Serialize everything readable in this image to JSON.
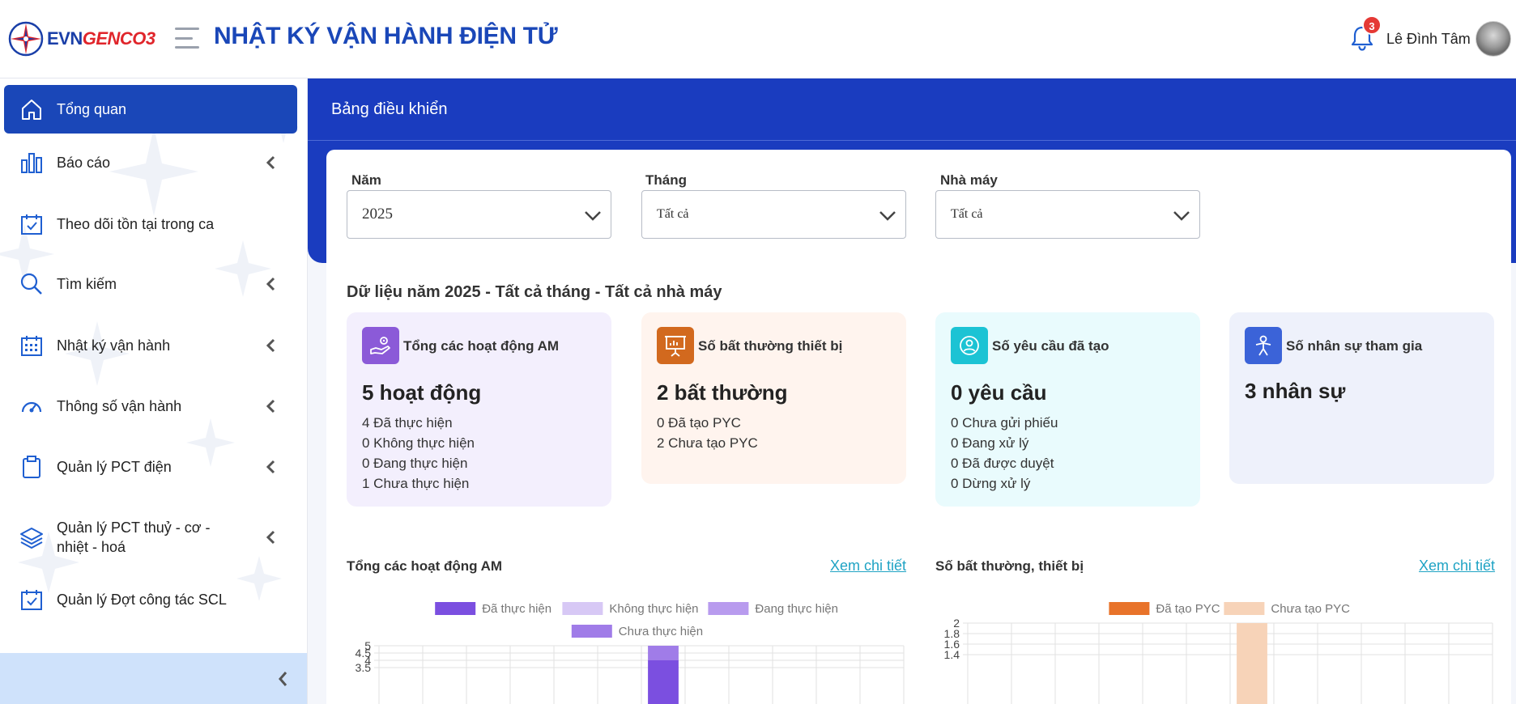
{
  "header": {
    "logo_evn": "EVN",
    "logo_genco": "GENCO3",
    "app_title": "NHẬT KÝ VẬN HÀNH ĐIỆN TỬ",
    "notification_count": "3",
    "user_name": "Lê Đình Tâm"
  },
  "sidebar": {
    "items": [
      {
        "label": "Tổng quan",
        "icon": "home-icon",
        "active": true
      },
      {
        "label": "Báo cáo",
        "icon": "bar-chart-icon",
        "has_children": true
      },
      {
        "label": "Theo dõi tồn tại trong ca",
        "icon": "calendar-check-icon"
      },
      {
        "label": "Tìm kiếm",
        "icon": "search-icon",
        "has_children": true
      },
      {
        "label": "Nhật ký vận hành",
        "icon": "calendar-grid-icon",
        "has_children": true
      },
      {
        "label": "Thông số vận hành",
        "icon": "gauge-icon",
        "has_children": true
      },
      {
        "label": "Quản lý PCT điện",
        "icon": "clipboard-icon",
        "has_children": true
      },
      {
        "label": "Quản lý PCT thuỷ - cơ - nhiệt - hoá",
        "icon": "layers-icon",
        "has_children": true
      },
      {
        "label": "Quản lý Đợt công tác SCL",
        "icon": "calendar-check-icon"
      }
    ]
  },
  "main": {
    "page_title": "Bảng điều khiển",
    "filters": {
      "year_label": "Năm",
      "year_value": "2025",
      "month_label": "Tháng",
      "month_value": "Tất cả",
      "plant_label": "Nhà máy",
      "plant_value": "Tất cả"
    },
    "data_heading": "Dữ liệu năm 2025 - Tất cả tháng - Tất cả nhà máy",
    "cards": [
      {
        "title": "Tổng các hoạt động AM",
        "value": "5 hoạt động",
        "lines": [
          "4 Đã thực hiện",
          "0 Không thực hiện",
          "0 Đang thực hiện",
          "1 Chưa thực hiện"
        ],
        "bg": "#f3effd",
        "icon_bg": "#8b5ad8",
        "icon": "hand-gear-icon"
      },
      {
        "title": "Số bất thường thiết bị",
        "value": "2 bất thường",
        "lines": [
          "0 Đã tạo PYC",
          "2 Chưa tạo PYC"
        ],
        "bg": "#fff4ee",
        "icon_bg": "#d2691e",
        "icon": "presentation-icon"
      },
      {
        "title": "Số yêu cầu đã tạo",
        "value": "0 yêu cầu",
        "lines": [
          "0 Chưa gửi phiếu",
          "0 Đang xử lý",
          "0 Đã được duyệt",
          "0 Dừng xử lý"
        ],
        "bg": "#e9fbfd",
        "icon_bg": "#1cc3d4",
        "icon": "user-circle-icon"
      },
      {
        "title": "Số nhân sự tham gia",
        "value": "3 nhân sự",
        "lines": [],
        "bg": "#eef1fb",
        "icon_bg": "#3b63d8",
        "icon": "person-icon"
      }
    ],
    "link_label": "Xem chi tiết"
  },
  "chart_data": [
    {
      "type": "bar",
      "title": "Tổng các hoạt động AM",
      "stacked": true,
      "legend_position": "top",
      "series": [
        {
          "name": "Đã thực hiện",
          "color": "#7b4fe0",
          "values": [
            0,
            0,
            0,
            0,
            0,
            0,
            4,
            0,
            0,
            0,
            0,
            0
          ]
        },
        {
          "name": "Không thực hiện",
          "color": "#d7c8f5",
          "values": [
            0,
            0,
            0,
            0,
            0,
            0,
            0,
            0,
            0,
            0,
            0,
            0
          ]
        },
        {
          "name": "Đang thực hiện",
          "color": "#b89bee",
          "values": [
            0,
            0,
            0,
            0,
            0,
            0,
            0,
            0,
            0,
            0,
            0,
            0
          ]
        },
        {
          "name": "Chưa thực hiện",
          "color": "#a07ce8",
          "values": [
            0,
            0,
            0,
            0,
            0,
            0,
            1,
            0,
            0,
            0,
            0,
            0
          ]
        }
      ],
      "y_ticks": [
        "5",
        "4.5",
        "4",
        "3.5"
      ],
      "ylim": [
        0,
        5
      ],
      "grid": true
    },
    {
      "type": "bar",
      "title": "Số bất thường, thiết bị",
      "stacked": true,
      "legend_position": "top",
      "series": [
        {
          "name": "Đã tạo PYC",
          "color": "#e8732a",
          "values": [
            0,
            0,
            0,
            0,
            0,
            0,
            0,
            0,
            0,
            0,
            0,
            0
          ]
        },
        {
          "name": "Chưa tạo PYC",
          "color": "#f7d3b8",
          "values": [
            0,
            0,
            0,
            0,
            0,
            0,
            2,
            0,
            0,
            0,
            0,
            0
          ]
        }
      ],
      "y_ticks": [
        "2",
        "1.8",
        "1.6",
        "1.4"
      ],
      "ylim": [
        0,
        2
      ],
      "grid": true
    }
  ]
}
